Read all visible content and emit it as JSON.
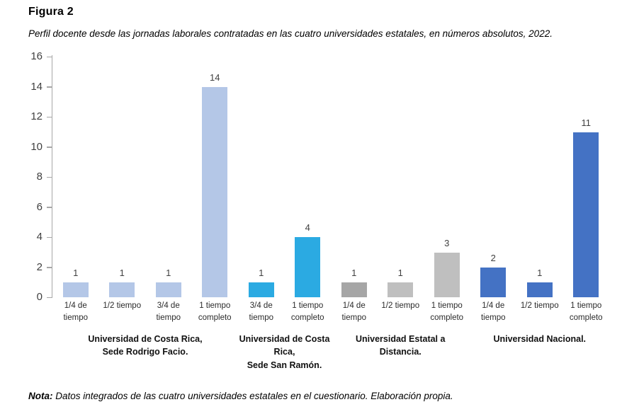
{
  "figure": {
    "label": "Figura 2",
    "caption": "Perfil docente desde las jornadas laborales contratadas en las cuatro universidades estatales, en números absolutos, 2022.",
    "note_label": "Nota:",
    "note_text": "Datos integrados de las cuatro universidades estatales en el cuestionario. Elaboración propia."
  },
  "chart_data": {
    "type": "bar",
    "title": "Perfil docente desde las jornadas laborales contratadas en las cuatro universidades estatales, en números absolutos, 2022.",
    "xlabel": "",
    "ylabel": "",
    "ylim": [
      0,
      16
    ],
    "y_ticks": [
      0,
      2,
      4,
      6,
      8,
      10,
      12,
      14,
      16
    ],
    "grid": false,
    "legend": "none",
    "value_labels_shown": true,
    "axis_color": "#a6a6a6",
    "tick_label_color": "#404040",
    "groups": [
      {
        "label": "Universidad de Costa Rica, Sede Rodrigo Facio.",
        "label_lines": [
          "Universidad de Costa Rica,",
          "Sede Rodrigo Facio."
        ],
        "color": "#b4c7e7",
        "bars": [
          {
            "category": "1/4 de tiempo",
            "value": 1
          },
          {
            "category": "1/2 tiempo",
            "value": 1
          },
          {
            "category": "3/4 de tiempo",
            "value": 1
          },
          {
            "category": "1 tiempo completo",
            "value": 14
          }
        ]
      },
      {
        "label": "Universidad de Costa Rica, Sede San Ramón.",
        "label_lines": [
          "Universidad de Costa Rica,",
          "Sede San Ramón."
        ],
        "color": "#2baae2",
        "bars": [
          {
            "category": "3/4 de tiempo",
            "value": 1
          },
          {
            "category": "1 tiempo completo",
            "value": 4
          }
        ]
      },
      {
        "label": "Universidad Estatal a Distancia.",
        "label_lines": [
          "Universidad Estatal a",
          "Distancia."
        ],
        "color": "#bfbfbf",
        "bars": [
          {
            "category": "1/4 de tiempo",
            "value": 1,
            "color": "#a6a6a6"
          },
          {
            "category": "1/2 tiempo",
            "value": 1
          },
          {
            "category": "1 tiempo completo",
            "value": 3
          }
        ]
      },
      {
        "label": "Universidad Nacional.",
        "label_lines": [
          "Universidad Nacional."
        ],
        "color": "#4472c4",
        "bars": [
          {
            "category": "1/4 de tiempo",
            "value": 2
          },
          {
            "category": "1/2 tiempo",
            "value": 1
          },
          {
            "category": "1 tiempo completo",
            "value": 11
          }
        ]
      }
    ]
  }
}
